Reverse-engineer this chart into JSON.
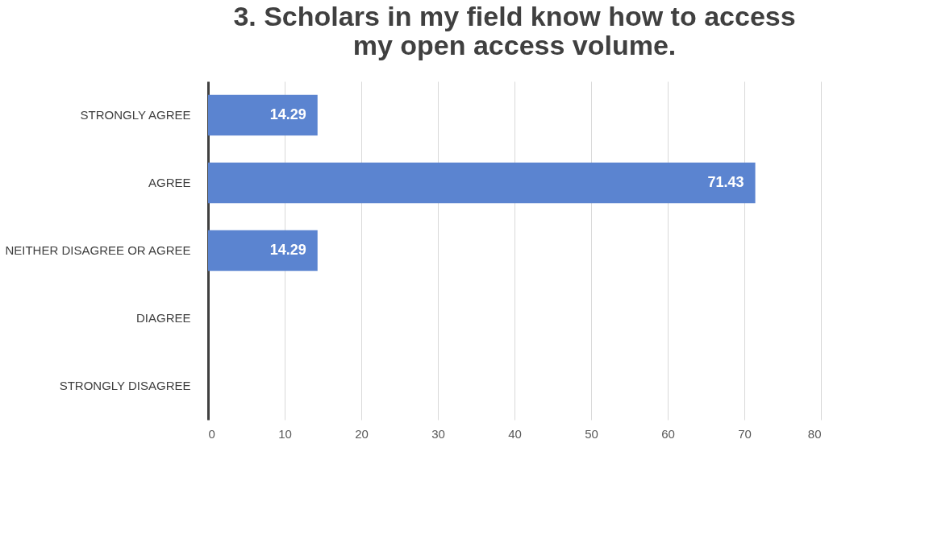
{
  "chart_data": {
    "type": "bar",
    "orientation": "horizontal",
    "title": "3. Scholars in my field know how to access my open access volume.",
    "categories": [
      "STRONGLY AGREE",
      "AGREE",
      "NEITHER DISAGREE OR AGREE",
      "DIAGREE",
      "STRONGLY DISAGREE"
    ],
    "values": [
      14.29,
      71.43,
      14.29,
      null,
      null
    ],
    "color": "#5b84d0",
    "xlim": [
      0,
      80
    ],
    "xticks": [
      0,
      10,
      20,
      30,
      40,
      50,
      60,
      70,
      80
    ],
    "grid": "x",
    "data_labels": true
  }
}
